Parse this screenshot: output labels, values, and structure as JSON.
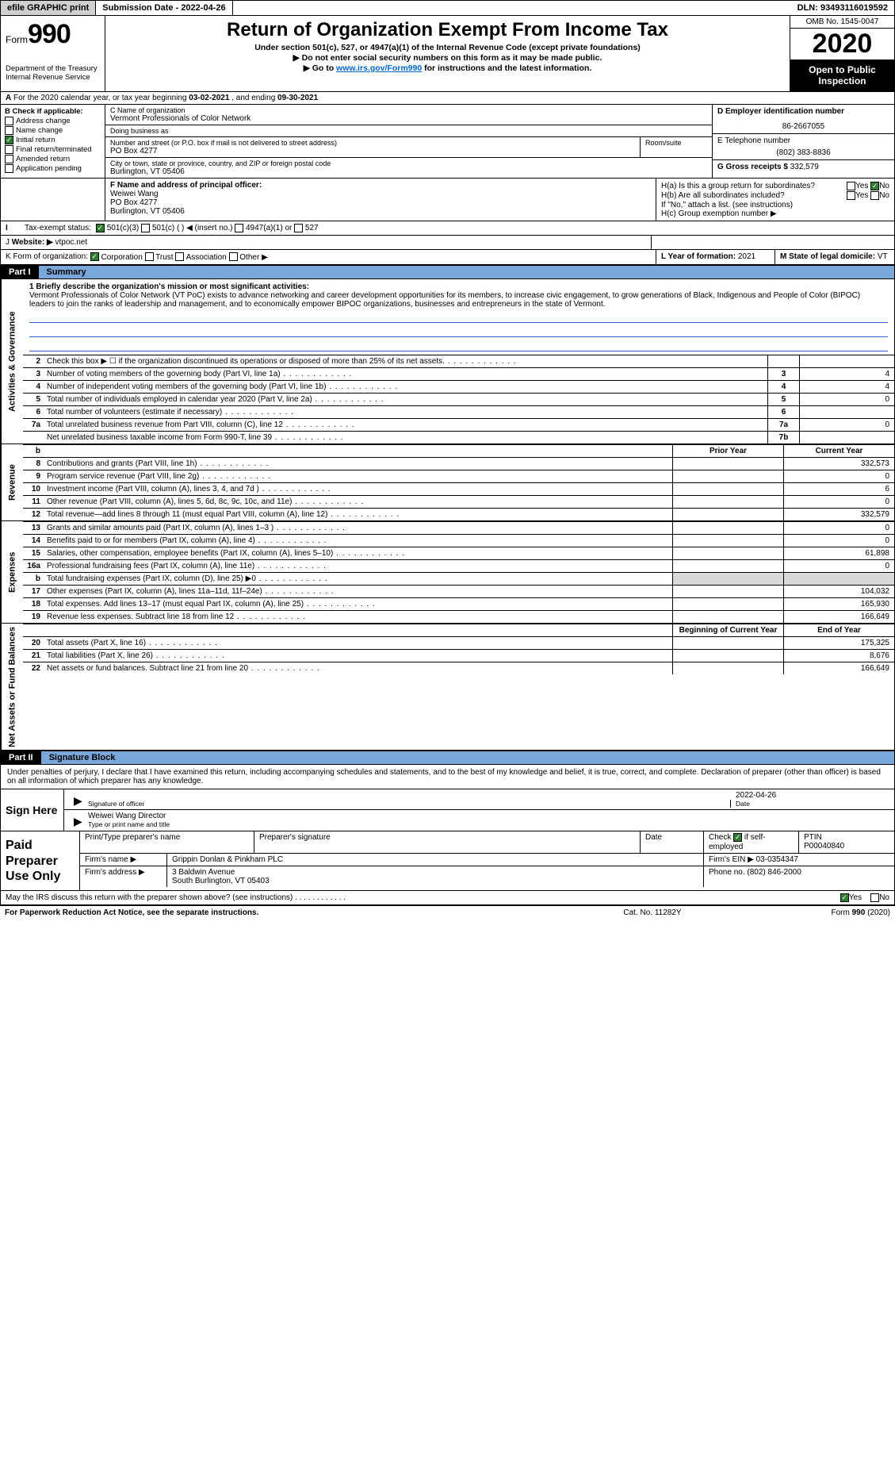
{
  "topbar": {
    "efile_btn": "efile GRAPHIC print",
    "submission_label": "Submission Date - 2022-04-26",
    "dln_label": "DLN: 93493116019592"
  },
  "header": {
    "form_label": "Form",
    "form_number": "990",
    "dept1": "Department of the Treasury",
    "dept2": "Internal Revenue Service",
    "title": "Return of Organization Exempt From Income Tax",
    "sub1": "Under section 501(c), 527, or 4947(a)(1) of the Internal Revenue Code (except private foundations)",
    "sub2": "Do not enter social security numbers on this form as it may be made public.",
    "sub3_pre": "Go to ",
    "sub3_link": "www.irs.gov/Form990",
    "sub3_post": " for instructions and the latest information.",
    "omb": "OMB No. 1545-0047",
    "year": "2020",
    "inspect": "Open to Public Inspection"
  },
  "period": {
    "a_label": "A",
    "text_pre": "For the 2020 calendar year, or tax year beginning ",
    "begin": "03-02-2021",
    "mid": " , and ending ",
    "end": "09-30-2021"
  },
  "b": {
    "label": "B Check if applicable:",
    "items": [
      "Address change",
      "Name change",
      "Initial return",
      "Final return/terminated",
      "Amended return",
      "Application pending"
    ],
    "checked_index": 2
  },
  "c": {
    "name_label": "C Name of organization",
    "name": "Vermont Professionals of Color Network",
    "dba_label": "Doing business as",
    "dba": "",
    "addr_label": "Number and street (or P.O. box if mail is not delivered to street address)",
    "addr": "PO Box 4277",
    "room_label": "Room/suite",
    "city_label": "City or town, state or province, country, and ZIP or foreign postal code",
    "city": "Burlington, VT  05406"
  },
  "d": {
    "label": "D Employer identification number",
    "value": "86-2667055"
  },
  "e": {
    "label": "E Telephone number",
    "value": "(802) 383-8836"
  },
  "g": {
    "label": "G Gross receipts $",
    "value": "332,579"
  },
  "f": {
    "label": "F  Name and address of principal officer:",
    "name": "Weiwei Wang",
    "addr1": "PO Box 4277",
    "addr2": "Burlington, VT  05406"
  },
  "h": {
    "a_label": "H(a)  Is this a group return for subordinates?",
    "a_no_checked": true,
    "b_label": "H(b)  Are all subordinates included?",
    "note": "If \"No,\" attach a list. (see instructions)",
    "c_label": "H(c)  Group exemption number ▶",
    "yes": "Yes",
    "no": "No"
  },
  "i": {
    "label": "Tax-exempt status:",
    "opts": [
      "501(c)(3)",
      "501(c) (  ) ◀ (insert no.)",
      "4947(a)(1) or",
      "527"
    ],
    "checked": 0
  },
  "j": {
    "label": "Website: ▶",
    "value": "vtpoc.net"
  },
  "k": {
    "label": "Form of organization:",
    "opts": [
      "Corporation",
      "Trust",
      "Association",
      "Other ▶"
    ],
    "checked": 0
  },
  "l": {
    "label": "L Year of formation:",
    "value": "2021"
  },
  "m": {
    "label": "M State of legal domicile:",
    "value": "VT"
  },
  "parts": {
    "p1": {
      "num": "Part I",
      "title": "Summary"
    },
    "p2": {
      "num": "Part II",
      "title": "Signature Block"
    }
  },
  "vtabs": {
    "gov": "Activities & Governance",
    "rev": "Revenue",
    "exp": "Expenses",
    "net": "Net Assets or Fund Balances"
  },
  "mission": {
    "label": "1   Briefly describe the organization's mission or most significant activities:",
    "text": "Vermont Professionals of Color Network (VT PoC) exists to advance networking and career development opportunities for its members, to increase civic engagement, to grow generations of Black, Indigenous and People of Color (BIPOC) leaders to join the ranks of leadership and management, and to economically empower BIPOC organizations, businesses and entrepreneurs in the state of Vermont."
  },
  "gov_rows": [
    {
      "n": "2",
      "t": "Check this box ▶ ☐ if the organization discontinued its operations or disposed of more than 25% of its net assets.",
      "box": "",
      "val": ""
    },
    {
      "n": "3",
      "t": "Number of voting members of the governing body (Part VI, line 1a)",
      "box": "3",
      "val": "4"
    },
    {
      "n": "4",
      "t": "Number of independent voting members of the governing body (Part VI, line 1b)",
      "box": "4",
      "val": "4"
    },
    {
      "n": "5",
      "t": "Total number of individuals employed in calendar year 2020 (Part V, line 2a)",
      "box": "5",
      "val": "0"
    },
    {
      "n": "6",
      "t": "Total number of volunteers (estimate if necessary)",
      "box": "6",
      "val": ""
    },
    {
      "n": "7a",
      "t": "Total unrelated business revenue from Part VIII, column (C), line 12",
      "box": "7a",
      "val": "0"
    },
    {
      "n": "",
      "t": "Net unrelated business taxable income from Form 990-T, line 39",
      "box": "7b",
      "val": ""
    }
  ],
  "col_hdr": {
    "b": "b",
    "prior": "Prior Year",
    "current": "Current Year"
  },
  "rev_rows": [
    {
      "n": "8",
      "t": "Contributions and grants (Part VIII, line 1h)",
      "prior": "",
      "cur": "332,573"
    },
    {
      "n": "9",
      "t": "Program service revenue (Part VIII, line 2g)",
      "prior": "",
      "cur": "0"
    },
    {
      "n": "10",
      "t": "Investment income (Part VIII, column (A), lines 3, 4, and 7d )",
      "prior": "",
      "cur": "6"
    },
    {
      "n": "11",
      "t": "Other revenue (Part VIII, column (A), lines 5, 6d, 8c, 9c, 10c, and 11e)",
      "prior": "",
      "cur": "0"
    },
    {
      "n": "12",
      "t": "Total revenue—add lines 8 through 11 (must equal Part VIII, column (A), line 12)",
      "prior": "",
      "cur": "332,579"
    }
  ],
  "exp_rows": [
    {
      "n": "13",
      "t": "Grants and similar amounts paid (Part IX, column (A), lines 1–3 )",
      "prior": "",
      "cur": "0"
    },
    {
      "n": "14",
      "t": "Benefits paid to or for members (Part IX, column (A), line 4)",
      "prior": "",
      "cur": "0"
    },
    {
      "n": "15",
      "t": "Salaries, other compensation, employee benefits (Part IX, column (A), lines 5–10)",
      "prior": "",
      "cur": "61,898"
    },
    {
      "n": "16a",
      "t": "Professional fundraising fees (Part IX, column (A), line 11e)",
      "prior": "",
      "cur": "0"
    },
    {
      "n": "b",
      "t": "Total fundraising expenses (Part IX, column (D), line 25) ▶0",
      "prior": "grey",
      "cur": "grey"
    },
    {
      "n": "17",
      "t": "Other expenses (Part IX, column (A), lines 11a–11d, 11f–24e)",
      "prior": "",
      "cur": "104,032"
    },
    {
      "n": "18",
      "t": "Total expenses. Add lines 13–17 (must equal Part IX, column (A), line 25)",
      "prior": "",
      "cur": "165,930"
    },
    {
      "n": "19",
      "t": "Revenue less expenses. Subtract line 18 from line 12",
      "prior": "",
      "cur": "166,649"
    }
  ],
  "net_hdr": {
    "prior": "Beginning of Current Year",
    "current": "End of Year"
  },
  "net_rows": [
    {
      "n": "20",
      "t": "Total assets (Part X, line 16)",
      "prior": "",
      "cur": "175,325"
    },
    {
      "n": "21",
      "t": "Total liabilities (Part X, line 26)",
      "prior": "",
      "cur": "8,676"
    },
    {
      "n": "22",
      "t": "Net assets or fund balances. Subtract line 21 from line 20",
      "prior": "",
      "cur": "166,649"
    }
  ],
  "sig": {
    "decl": "Under penalties of perjury, I declare that I have examined this return, including accompanying schedules and statements, and to the best of my knowledge and belief, it is true, correct, and complete. Declaration of preparer (other than officer) is based on all information of which preparer has any knowledge.",
    "sign_here": "Sign Here",
    "sig_officer": "Signature of officer",
    "date": "Date",
    "sig_date": "2022-04-26",
    "name_title": "Weiwei Wang Director",
    "type_name": "Type or print name and title"
  },
  "preparer": {
    "label": "Paid Preparer Use Only",
    "print_name_lbl": "Print/Type preparer's name",
    "prep_sig_lbl": "Preparer's signature",
    "date_lbl": "Date",
    "check_lbl": "Check",
    "self_emp": "if self-employed",
    "ptin_lbl": "PTIN",
    "ptin": "P00040840",
    "firm_name_lbl": "Firm's name    ▶",
    "firm_name": "Grippin Donlan & Pinkham PLC",
    "firm_ein_lbl": "Firm's EIN ▶",
    "firm_ein": "03-0354347",
    "firm_addr_lbl": "Firm's address ▶",
    "firm_addr1": "3 Baldwin Avenue",
    "firm_addr2": "South Burlington, VT  05403",
    "phone_lbl": "Phone no.",
    "phone": "(802) 846-2000"
  },
  "discuss": {
    "text": "May the IRS discuss this return with the preparer shown above? (see instructions)",
    "yes": "Yes",
    "no": "No"
  },
  "footer": {
    "left": "For Paperwork Reduction Act Notice, see the separate instructions.",
    "mid": "Cat. No. 11282Y",
    "right_pre": "Form ",
    "right_form": "990",
    "right_post": " (2020)"
  },
  "colors": {
    "part_bg": "#7aa7d9",
    "rule": "#3366cc",
    "grey": "#d9d9d9",
    "check_green": "#2e7d32"
  }
}
